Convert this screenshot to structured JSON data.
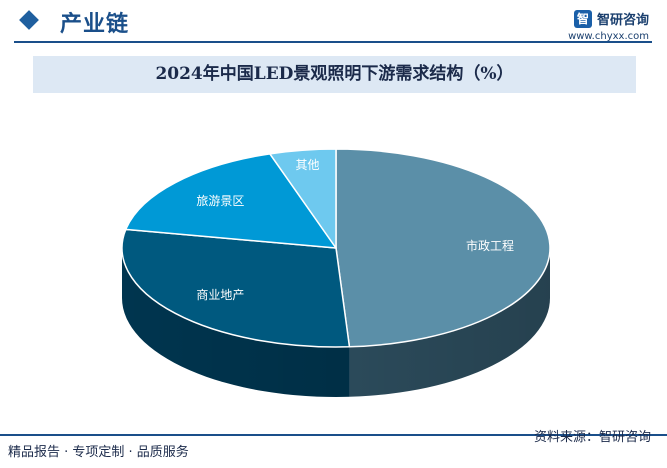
{
  "header": {
    "title": "产业链"
  },
  "brand": {
    "name": "智研咨询",
    "url": "www.chyxx.com"
  },
  "chart_data": {
    "type": "pie",
    "title": "2024年中国LED景观照明下游需求结构（%）",
    "categories": [
      "市政工程",
      "商业地产",
      "旅游景区",
      "其他"
    ],
    "values": [
      49,
      29,
      17,
      5
    ],
    "colors": [
      "#5b8fa8",
      "#00597f",
      "#0099d6",
      "#6ec9ef"
    ],
    "side_colors": [
      "#2b4a5a",
      "#00354f",
      "#005a80",
      "#3a86a6"
    ],
    "style": "3d"
  },
  "footer": {
    "left": "精品报告 · 专项定制 · 品质服务",
    "right": "资料来源：智研咨询"
  }
}
